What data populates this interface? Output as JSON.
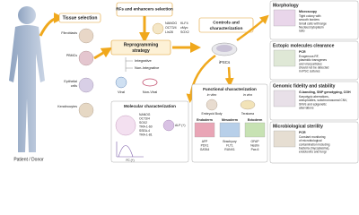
{
  "patient": {
    "label": "Patient / Donor"
  },
  "tissue": {
    "title": "Tissue selection",
    "cells": [
      "Fibroblasts",
      "PBMCs",
      "Epithelial",
      "cells",
      "Keratinocytes"
    ]
  },
  "rfs": {
    "title": "RFs and enhancers selection",
    "factors": [
      "NANOG",
      "KLF4",
      "OCT3/4",
      "cMyc",
      "Lin28",
      "SOX2"
    ]
  },
  "reprogramming": {
    "title": [
      "Reprogramming",
      "strategy"
    ],
    "methods": [
      "Integrative",
      "Non-Integrative"
    ],
    "vectors": [
      "Viral",
      "Non-Viral"
    ]
  },
  "controls": {
    "title": [
      "Controls and",
      "characterization"
    ],
    "result": "iPSCs"
  },
  "molecular": {
    "title": "Molecular characterization",
    "markers": [
      "NANOG",
      "OCT3/4",
      "SOX2",
      "TRA-1-60",
      "SSEA-4",
      "TRA-1-81"
    ],
    "alp": "ALP (+)",
    "fc": "FC (+)"
  },
  "functional": {
    "title": "Functional characterization",
    "modes": [
      "in vitro",
      "in vivo"
    ],
    "assays": [
      "Embryoid Body",
      "Teratoma"
    ],
    "layers": [
      {
        "name": "Endoderm",
        "markers": [
          "AFP",
          "PDX1",
          "GATA4"
        ]
      },
      {
        "name": "Mesoderm",
        "markers": [
          "Brachyury",
          "FLT1",
          "RUNX1"
        ]
      },
      {
        "name": "Ectoderm",
        "markers": [
          "GFAP",
          "Nestin",
          "Pax-6"
        ]
      }
    ]
  },
  "panels": [
    {
      "title": "Morphology",
      "method": "Microscopy",
      "text": [
        "Tight colony with",
        "smooth borders",
        "Small cells with large",
        "Nucleus/cytoplasm",
        "ratio"
      ]
    },
    {
      "title": "Ectopic molecules clearance",
      "method": "PCR",
      "text": [
        "Exogenous RF,",
        "plasmidic transgenes",
        "and viral particles",
        "should not be detected",
        "in iPSC cultures"
      ]
    },
    {
      "title": "Genomic fidelity and stability",
      "method": "G-banding, SNP genotyping, CGH",
      "text": [
        "Karyotypic aberrations,",
        "aneuploidies, subchromosomal CNV,",
        "SNVs and epigenetic",
        "aberrations"
      ]
    },
    {
      "title": "Microbiological sterility",
      "method": "PCR",
      "text": [
        "Constant monitoring",
        "of microbiological",
        "contamination including",
        "bacteria (mycoplasma),",
        "endotoxins and fungi"
      ]
    }
  ]
}
